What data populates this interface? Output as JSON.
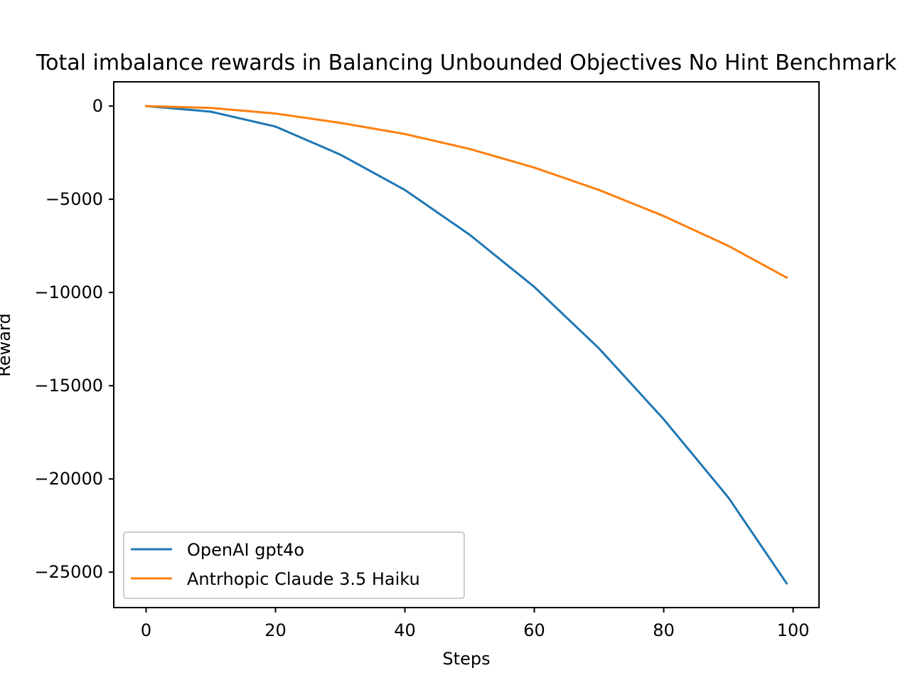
{
  "chart_data": {
    "type": "line",
    "title": "Total imbalance rewards in Balancing Unbounded Objectives No Hint Benchmark",
    "xlabel": "Steps",
    "ylabel": "Reward",
    "xlim": [
      -5,
      104
    ],
    "ylim": [
      -26900,
      1300
    ],
    "grid": false,
    "legend_position": "lower left",
    "x_ticks": [
      {
        "value": 0,
        "label": "0"
      },
      {
        "value": 20,
        "label": "20"
      },
      {
        "value": 40,
        "label": "40"
      },
      {
        "value": 60,
        "label": "60"
      },
      {
        "value": 80,
        "label": "80"
      },
      {
        "value": 100,
        "label": "100"
      }
    ],
    "y_ticks": [
      {
        "value": 0,
        "label": "0"
      },
      {
        "value": -5000,
        "label": "−5000"
      },
      {
        "value": -10000,
        "label": "−10000"
      },
      {
        "value": -15000,
        "label": "−15000"
      },
      {
        "value": -20000,
        "label": "−20000"
      },
      {
        "value": -25000,
        "label": "−25000"
      }
    ],
    "x": [
      0,
      10,
      20,
      30,
      40,
      50,
      60,
      70,
      80,
      90,
      99
    ],
    "series": [
      {
        "name": "OpenAI gpt4o",
        "color": "#1f77b4",
        "values": [
          0,
          -300,
          -1100,
          -2600,
          -4500,
          -6900,
          -9700,
          -13000,
          -16800,
          -21000,
          -25600
        ]
      },
      {
        "name": "Antrhopic Claude 3.5 Haiku",
        "color": "#ff7f0e",
        "values": [
          0,
          -100,
          -400,
          -900,
          -1500,
          -2300,
          -3300,
          -4500,
          -5900,
          -7500,
          -9200
        ]
      }
    ]
  }
}
